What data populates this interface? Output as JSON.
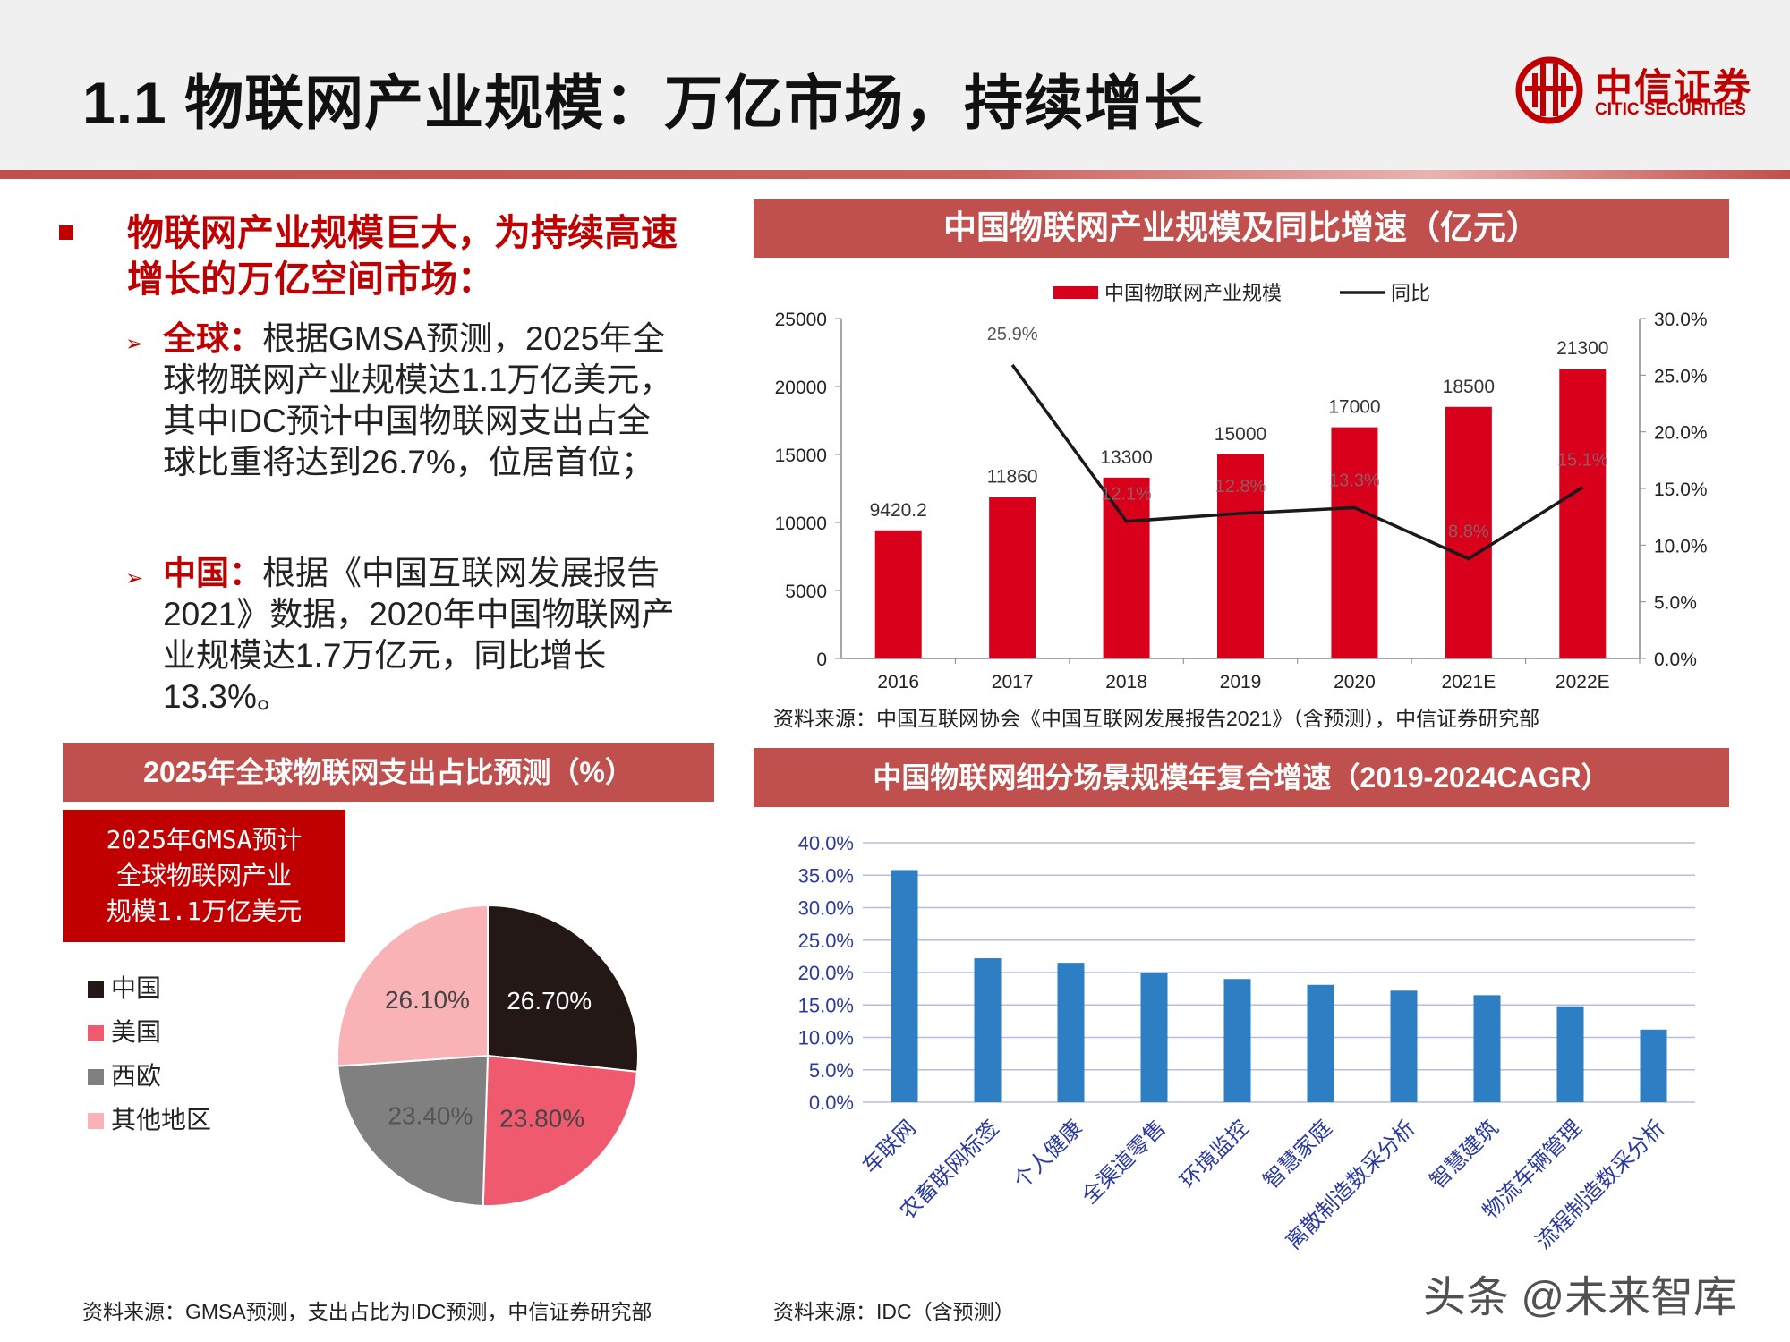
{
  "header": {
    "title": "1.1 物联网产业规模：万亿市场，持续增长",
    "logo_cn": "中信证券",
    "logo_en": "CITIC SECURITIES"
  },
  "text": {
    "lead": "物联网产业规模巨大，为持续高速增长的万亿空间市场：",
    "global_label": "全球：",
    "global_body": "根据GMSA预测，2025年全球物联网产业规模达1.1万亿美元，其中IDC预计中国物联网支出占全球比重将达到26.7%，位居首位；",
    "china_label": "中国：",
    "china_body": "根据《中国互联网发展报告2021》数据，2020年中国物联网产业规模达1.7万亿元，同比增长13.3%。"
  },
  "banners": {
    "bar": "中国物联网产业规模及同比增速（亿元）",
    "pie": "2025年全球物联网支出占比预测（%）",
    "col": "中国物联网细分场景规模年复合增速（2019-2024CAGR）"
  },
  "gmsa_box": [
    "2025年GMSA预计",
    "全球物联网产业",
    "规模1.1万亿美元"
  ],
  "sources": {
    "bar": "资料来源：中国互联网协会《中国互联网发展报告2021》（含预测），中信证券研究部",
    "pie": "资料来源：GMSA预测，支出占比为IDC预测，中信证券研究部",
    "col": "资料来源：IDC（含预测）"
  },
  "watermark": "头条 @未来智库",
  "colors": {
    "red": "#c00000",
    "bar_red": "#d9001b",
    "banner": "#c0504d",
    "blue": "#2e7ec4",
    "line": "#1a1a1a"
  },
  "chart_data": [
    {
      "type": "bar",
      "title": "中国物联网产业规模及同比增速（亿元）",
      "categories": [
        "2016",
        "2017",
        "2018",
        "2019",
        "2020",
        "2021E",
        "2022E"
      ],
      "series": [
        {
          "name": "中国物联网产业规模",
          "type": "bar",
          "axis": "left",
          "values": [
            9420.2,
            11860,
            13300,
            15000,
            17000,
            18500,
            21300
          ],
          "labels": [
            "9420.2",
            "11860",
            "13300",
            "15000",
            "17000",
            "18500",
            "21300"
          ]
        },
        {
          "name": "同比",
          "type": "line",
          "axis": "right",
          "values": [
            null,
            25.9,
            12.1,
            12.8,
            13.3,
            8.8,
            15.1
          ],
          "labels": [
            "",
            "25.9%",
            "12.1%",
            "12.8%",
            "13.3%",
            "8.8%",
            "15.1%"
          ]
        }
      ],
      "y_left": {
        "min": 0,
        "max": 25000,
        "ticks": [
          "0",
          "5000",
          "10000",
          "15000",
          "20000",
          "25000"
        ]
      },
      "y_right": {
        "min": 0,
        "max": 30,
        "ticks": [
          "0.0%",
          "5.0%",
          "10.0%",
          "15.0%",
          "20.0%",
          "25.0%",
          "30.0%"
        ]
      },
      "legend": "top-center"
    },
    {
      "type": "pie",
      "title": "2025年全球物联网支出占比预测（%）",
      "slices": [
        {
          "name": "中国",
          "value": 26.7,
          "label": "26.70%",
          "color": "#231815"
        },
        {
          "name": "美国",
          "value": 23.8,
          "label": "23.80%",
          "color": "#f05a6e"
        },
        {
          "name": "西欧",
          "value": 23.4,
          "label": "23.40%",
          "color": "#808080"
        },
        {
          "name": "其他地区",
          "value": 26.1,
          "label": "26.10%",
          "color": "#f9b3b6"
        }
      ],
      "legend": "left"
    },
    {
      "type": "bar",
      "title": "中国物联网细分场景规模年复合增速（2019-2024CAGR）",
      "categories": [
        "车联网",
        "农畜联网标签",
        "个人健康",
        "全渠道零售",
        "环境监控",
        "智慧家庭",
        "离散制造数采分析",
        "智慧建筑",
        "物流车辆管理",
        "流程制造数采分析"
      ],
      "values": [
        35.8,
        22.2,
        21.5,
        20.0,
        19.0,
        18.1,
        17.2,
        16.5,
        14.8,
        11.2
      ],
      "unit": "%",
      "ylim": [
        0,
        40
      ],
      "ticks": [
        "0.0%",
        "5.0%",
        "10.0%",
        "15.0%",
        "20.0%",
        "25.0%",
        "30.0%",
        "35.0%",
        "40.0%"
      ],
      "grid": true
    }
  ]
}
